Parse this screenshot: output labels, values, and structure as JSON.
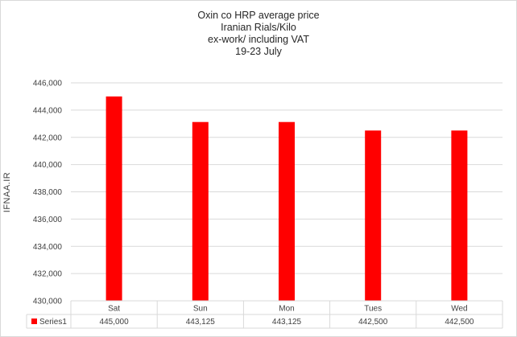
{
  "chart_data": {
    "type": "bar",
    "title_lines": [
      "Oxin co HRP average  price",
      "Iranian Rials/Kilo",
      "ex-work/ including VAT",
      "19-23  July"
    ],
    "ylabel": "IFNAA.IR",
    "categories": [
      "Sat",
      "Sun",
      "Mon",
      "Tues",
      "Wed"
    ],
    "series": [
      {
        "name": "Series1",
        "values": [
          445000,
          443125,
          443125,
          442500,
          442500
        ],
        "labels": [
          "445,000",
          "443,125",
          "443,125",
          "442,500",
          "442,500"
        ]
      }
    ],
    "ylim": [
      430000,
      446000
    ],
    "yticks": [
      430000,
      432000,
      434000,
      436000,
      438000,
      440000,
      442000,
      444000,
      446000
    ],
    "grid": true,
    "legend": "data-table",
    "colors": {
      "bar": "#ff0000",
      "grid": "#d9d9d9",
      "text": "#404040"
    }
  }
}
